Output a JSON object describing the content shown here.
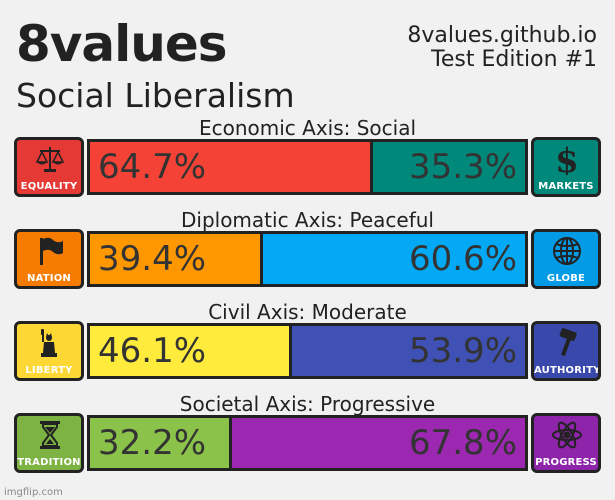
{
  "header": {
    "title": "8values",
    "ideology": "Social Liberalism",
    "site": "8values.github.io",
    "edition": "Test Edition #1"
  },
  "axes": [
    {
      "label": "Economic Axis: Social",
      "left": {
        "caption": "EQUALITY",
        "icon": "scales-icon",
        "color": "#f44336",
        "iconbg": "#e53935",
        "value": 64.7,
        "text": "64.7%"
      },
      "right": {
        "caption": "MARKETS",
        "icon": "dollar-icon",
        "color": "#00897b",
        "iconbg": "#00897b",
        "value": 35.3,
        "text": "35.3%"
      }
    },
    {
      "label": "Diplomatic Axis: Peaceful",
      "left": {
        "caption": "NATION",
        "icon": "flag-icon",
        "color": "#ff9800",
        "iconbg": "#f57c00",
        "value": 39.4,
        "text": "39.4%"
      },
      "right": {
        "caption": "GLOBE",
        "icon": "globe-icon",
        "color": "#03a9f4",
        "iconbg": "#039be5",
        "value": 60.6,
        "text": "60.6%"
      }
    },
    {
      "label": "Civil Axis: Moderate",
      "left": {
        "caption": "LIBERTY",
        "icon": "statue-of-liberty-icon",
        "color": "#ffeb3b",
        "iconbg": "#fdd835",
        "value": 46.1,
        "text": "46.1%"
      },
      "right": {
        "caption": "AUTHORITY",
        "icon": "gavel-icon",
        "color": "#3f51b5",
        "iconbg": "#3949ab",
        "value": 53.9,
        "text": "53.9%"
      }
    },
    {
      "label": "Societal Axis: Progressive",
      "left": {
        "caption": "TRADITION",
        "icon": "hourglass-icon",
        "color": "#8bc34a",
        "iconbg": "#7cb342",
        "value": 32.2,
        "text": "32.2%"
      },
      "right": {
        "caption": "PROGRESS",
        "icon": "atom-icon",
        "color": "#9c27b0",
        "iconbg": "#8e24aa",
        "value": 67.8,
        "text": "67.8%"
      }
    }
  ],
  "watermark": "imgflip.com"
}
